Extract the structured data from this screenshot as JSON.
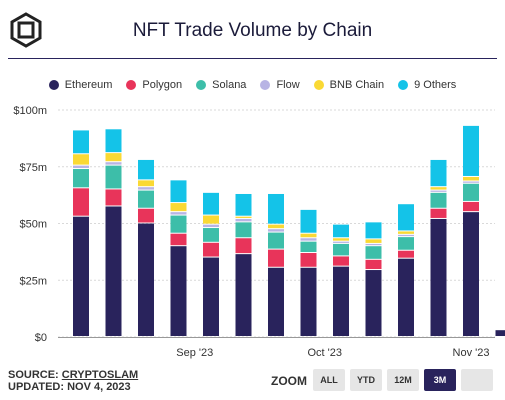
{
  "header": {
    "title": "NFT Trade Volume by Chain"
  },
  "footer": {
    "source_prefix": "SOURCE: ",
    "source_name": "CRYPTOSLAM",
    "updated": "UPDATED: NOV 4, 2023"
  },
  "zoom": {
    "label": "ZOOM",
    "buttons": [
      "ALL",
      "YTD",
      "12M",
      "3M",
      ""
    ],
    "active": "3M"
  },
  "chart_data": {
    "type": "bar",
    "stacked": true,
    "title": "NFT Trade Volume by Chain",
    "xlabel": "",
    "ylabel": "",
    "ylim": [
      0,
      100
    ],
    "y_unit": "$M",
    "y_ticks": [
      "$0",
      "$25m",
      "$50m",
      "$75m",
      "$100m"
    ],
    "x_tick_labels": [
      "Sep '23",
      "Oct '23",
      "Nov '23"
    ],
    "grid": true,
    "legend_position": "top",
    "n_bars": 14,
    "series": [
      {
        "name": "Ethereum",
        "color": "#29235c",
        "values": [
          53,
          57.5,
          50,
          40,
          35,
          36.5,
          30.5,
          30.5,
          31,
          29.5,
          34.5,
          52,
          55,
          3
        ]
      },
      {
        "name": "Polygon",
        "color": "#e8345a",
        "values": [
          12.5,
          7.5,
          6.5,
          5.5,
          6.5,
          7,
          8,
          6.5,
          4.5,
          4.5,
          3.5,
          4.5,
          4.5,
          0
        ]
      },
      {
        "name": "Solana",
        "color": "#3dbea9",
        "values": [
          8.5,
          10.5,
          8,
          8,
          6.5,
          7,
          7.5,
          5,
          5.5,
          6,
          6,
          7,
          8,
          0
        ]
      },
      {
        "name": "Flow",
        "color": "#b8b4e4",
        "values": [
          1.5,
          1.5,
          1.5,
          1.5,
          1.5,
          1.5,
          1.5,
          1.5,
          1,
          1,
          1,
          1,
          1,
          0
        ]
      },
      {
        "name": "BNB Chain",
        "color": "#fad934",
        "values": [
          5,
          4,
          3,
          4,
          4,
          1,
          2,
          2,
          1.5,
          2,
          1.5,
          1.5,
          2,
          0
        ]
      },
      {
        "name": "9 Others",
        "color": "#14c3e8",
        "values": [
          10.5,
          10.5,
          9,
          10,
          10,
          10,
          13.5,
          10.5,
          6,
          7.5,
          12,
          12,
          22.5,
          0
        ]
      }
    ]
  }
}
